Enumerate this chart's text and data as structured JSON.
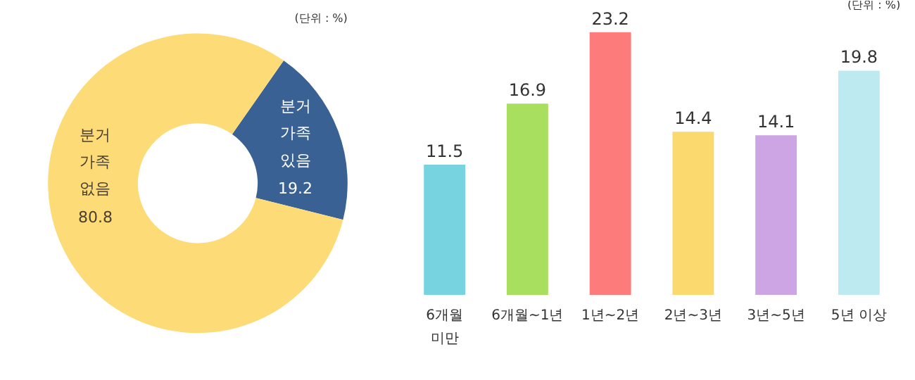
{
  "chart_data": [
    {
      "type": "donut",
      "annotations": [
        "(단위 : %)"
      ],
      "categories": [
        "분거 가족 있음",
        "분거 가족 없음"
      ],
      "values": [
        19.2,
        80.8
      ],
      "colors": [
        "#3a6194",
        "#fddb77"
      ],
      "data_labels": true
    },
    {
      "type": "bar",
      "annotations": [
        "(단위 : %)"
      ],
      "categories": [
        "6개월 미만",
        "6개월~1년",
        "1년~2년",
        "2년~3년",
        "3년~5년",
        "5년 이상"
      ],
      "values": [
        11.5,
        16.9,
        23.2,
        14.4,
        14.1,
        19.8
      ],
      "colors": [
        "#78d3e1",
        "#a9df5e",
        "#fe7b7b",
        "#fcd96f",
        "#cda4e4",
        "#bdeaf1"
      ],
      "data_labels": true
    }
  ]
}
